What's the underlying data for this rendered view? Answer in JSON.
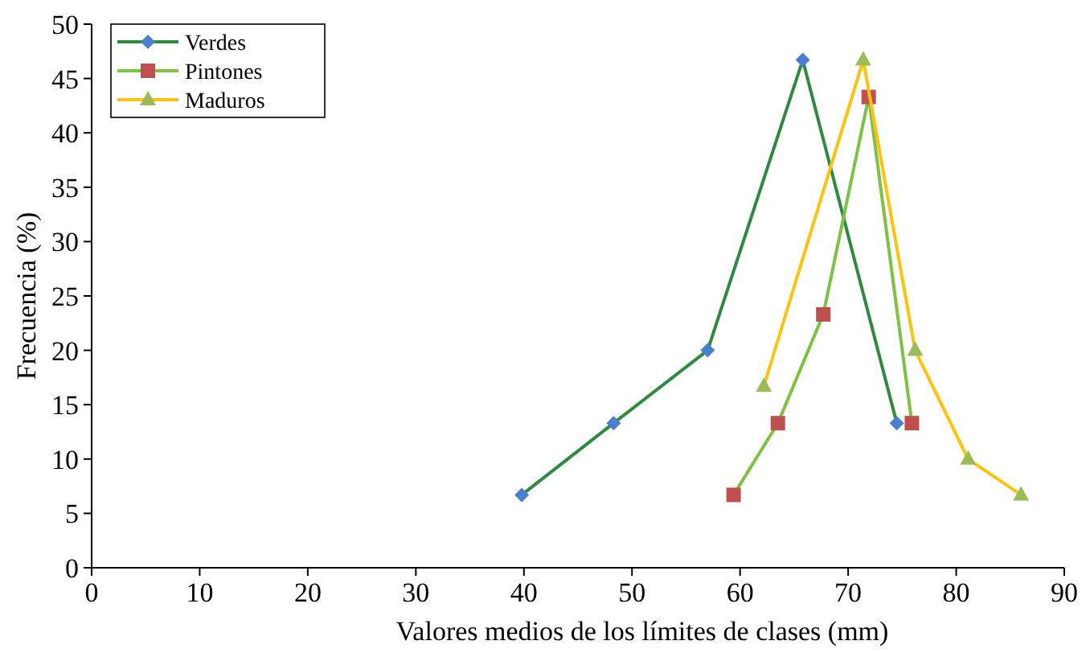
{
  "chart_data": {
    "type": "line",
    "xlabel": "Valores medios de los límites de clases (mm)",
    "ylabel": "Frecuencia (%)",
    "xlim": [
      0,
      90
    ],
    "xticks": [
      0,
      10,
      20,
      30,
      40,
      50,
      60,
      70,
      80,
      90
    ],
    "ylim": [
      0,
      50
    ],
    "yticks": [
      0,
      5,
      10,
      15,
      20,
      25,
      30,
      35,
      40,
      45,
      50
    ],
    "grid": false,
    "legend": "top left",
    "series": [
      {
        "name": "Verdes",
        "color": "#2e8b3e",
        "colors": [
          "#4a7fd0",
          "#4a7fd0",
          "#4a7fd0",
          "#4a7fd0",
          "#4a7fd0"
        ],
        "marker": "diamond",
        "x": [
          39.8,
          48.3,
          57,
          65.8,
          74.5
        ],
        "values": [
          6.7,
          13.3,
          20,
          46.7,
          13.3
        ]
      },
      {
        "name": "Pintones",
        "color": "#7dc242",
        "colors": [
          "#c0504d",
          "#c0504d",
          "#c0504d",
          "#c0504d",
          "#c0504d"
        ],
        "marker": "square",
        "x": [
          59.4,
          63.5,
          67.7,
          71.9,
          75.9
        ],
        "values": [
          6.7,
          13.3,
          23.3,
          43.3,
          13.3
        ]
      },
      {
        "name": "Maduros",
        "color": "#ffc20e",
        "colors": [
          "#9bbb59",
          "#9bbb59",
          "#9bbb59",
          "#9bbb59",
          "#9bbb59"
        ],
        "marker": "triangle",
        "x": [
          62.2,
          71.4,
          76.2,
          81.1,
          86
        ],
        "values": [
          16.7,
          46.7,
          20,
          10,
          6.7
        ]
      }
    ]
  }
}
